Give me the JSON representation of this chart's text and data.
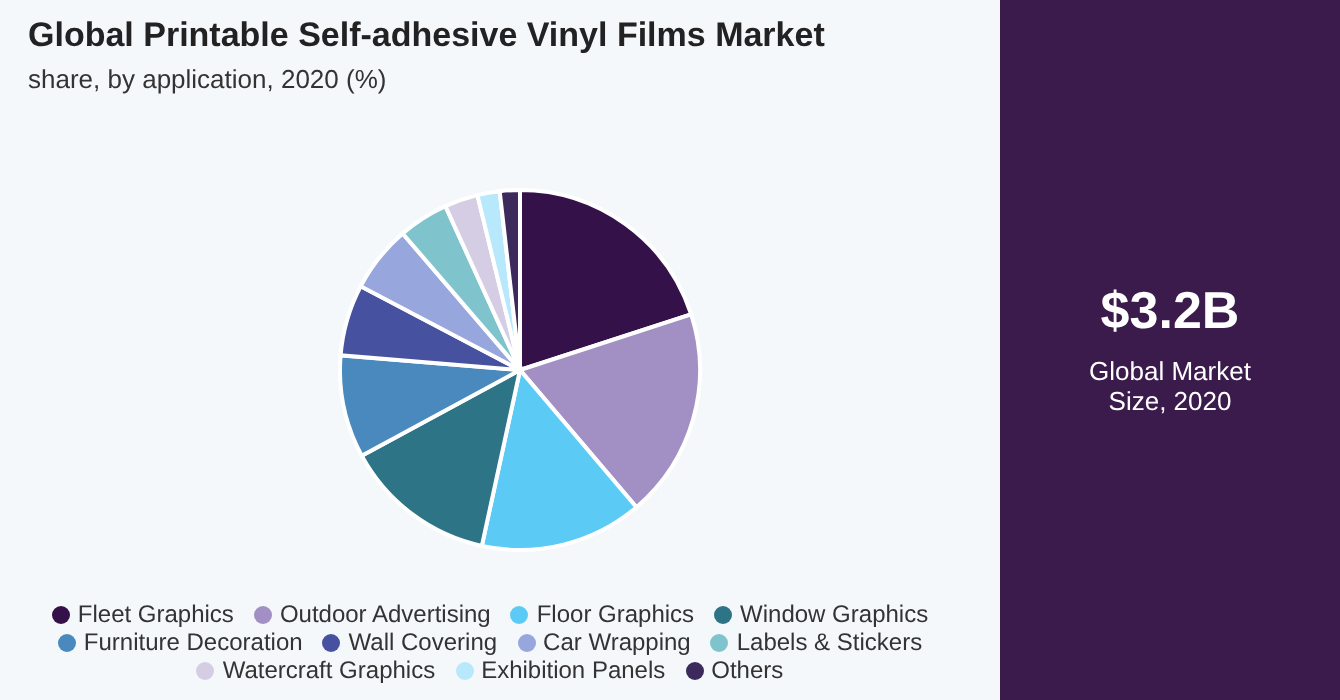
{
  "chart_data": {
    "type": "pie",
    "title": "Global Printable Self-adhesive Vinyl Films Market",
    "subtitle": "share, by application, 2020 (%)",
    "categories": [
      "Fleet Graphics",
      "Outdoor Advertising",
      "Floor Graphics",
      "Window Graphics",
      "Furniture Decoration",
      "Wall Covering",
      "Car Wrapping",
      "Labels & Stickers",
      "Watercraft Graphics",
      "Exhibition Panels",
      "Others"
    ],
    "values": [
      20,
      18.8,
      14.6,
      13.7,
      9.2,
      6.4,
      6,
      4.5,
      3,
      2,
      1.8
    ],
    "colors": [
      "#35114a",
      "#a28fc4",
      "#5bcbf5",
      "#2e7487",
      "#4a89bd",
      "#4652a0",
      "#97a6dc",
      "#7fc4cc",
      "#d5cde3",
      "#b8e8fb",
      "#3d2a5c"
    ],
    "legend": "bottom",
    "annotations": [
      "$3.2B",
      "Global Market Size, 2020"
    ]
  }
}
